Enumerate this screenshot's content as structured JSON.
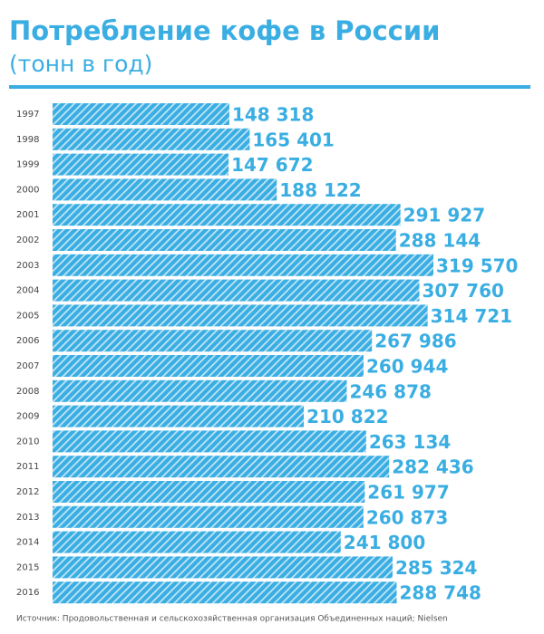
{
  "chart_data": {
    "type": "bar",
    "orientation": "horizontal",
    "title": "Потребление кофе в России",
    "subtitle": "(тонн в год)",
    "categories": [
      "1997",
      "1998",
      "1999",
      "2000",
      "2001",
      "2002",
      "2003",
      "2004",
      "2005",
      "2006",
      "2007",
      "2008",
      "2009",
      "2010",
      "2011",
      "2012",
      "2013",
      "2014",
      "2015",
      "2016"
    ],
    "values": [
      148318,
      165401,
      147672,
      188122,
      291927,
      288144,
      319570,
      307760,
      314721,
      267986,
      260944,
      246878,
      210822,
      263134,
      282436,
      261977,
      260873,
      241800,
      285324,
      288748
    ],
    "value_labels": [
      "148 318",
      "165 401",
      "147 672",
      "188 122",
      "291 927",
      "288 144",
      "319 570",
      "307 760",
      "314 721",
      "267 986",
      "260 944",
      "246 878",
      "210 822",
      "263 134",
      "282 436",
      "261 977",
      "260 873",
      "241 800",
      "285 324",
      "288 748"
    ],
    "color": "#3aaee2",
    "source": "Источник: Продовольственная и сельскохозяйственная организация Объединенных наций; Nielsen"
  }
}
